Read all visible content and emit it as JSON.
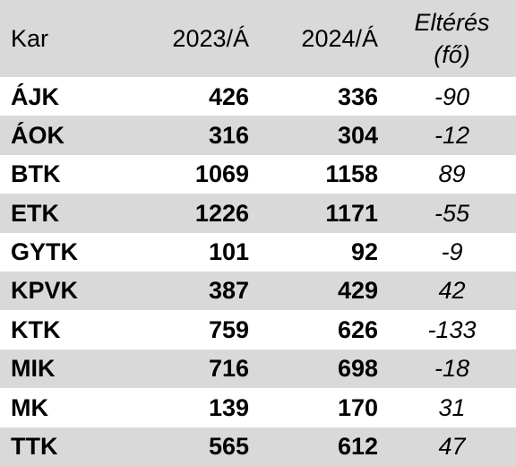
{
  "table": {
    "headers": {
      "kar": "Kar",
      "y2023": "2023/Á",
      "y2024": "2024/Á",
      "diff_line1": "Eltérés",
      "diff_line2": "(fő)"
    },
    "rows": [
      {
        "kar": "ÁJK",
        "y2023": "426",
        "y2024": "336",
        "diff": "-90"
      },
      {
        "kar": "ÁOK",
        "y2023": "316",
        "y2024": "304",
        "diff": "-12"
      },
      {
        "kar": "BTK",
        "y2023": "1069",
        "y2024": "1158",
        "diff": "89"
      },
      {
        "kar": "ETK",
        "y2023": "1226",
        "y2024": "1171",
        "diff": "-55"
      },
      {
        "kar": "GYTK",
        "y2023": "101",
        "y2024": "92",
        "diff": "-9"
      },
      {
        "kar": "KPVK",
        "y2023": "387",
        "y2024": "429",
        "diff": "42"
      },
      {
        "kar": "KTK",
        "y2023": "759",
        "y2024": "626",
        "diff": "-133"
      },
      {
        "kar": "MIK",
        "y2023": "716",
        "y2024": "698",
        "diff": "-18"
      },
      {
        "kar": "MK",
        "y2023": "139",
        "y2024": "170",
        "diff": "31"
      },
      {
        "kar": "TTK",
        "y2023": "565",
        "y2024": "612",
        "diff": "47"
      }
    ]
  },
  "colors": {
    "shade": "#d9d9d9",
    "text": "#000000"
  }
}
